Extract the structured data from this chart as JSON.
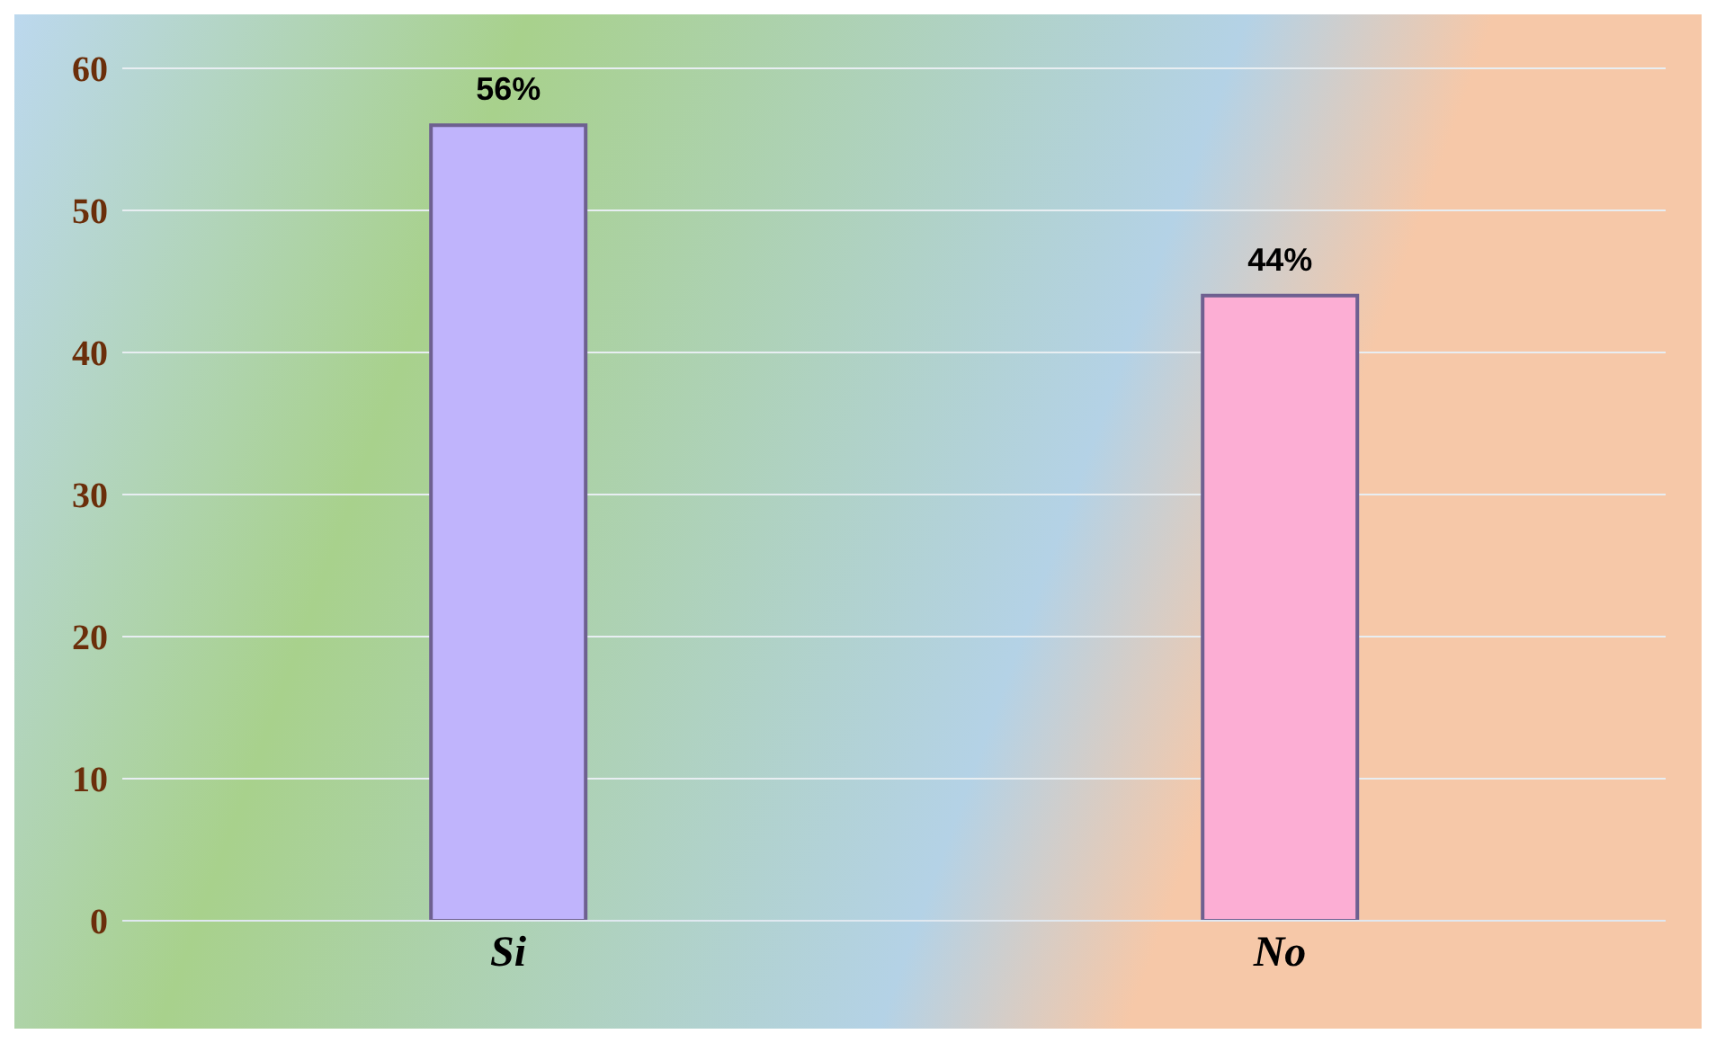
{
  "chart_data": {
    "type": "bar",
    "categories": [
      "Si",
      "No"
    ],
    "values": [
      56,
      44
    ],
    "colors": [
      "#c0b4fc",
      "#fcaed4"
    ],
    "value_labels": [
      "56%",
      "44%"
    ],
    "ylim": [
      0,
      60
    ],
    "yticks": [
      0,
      10,
      20,
      30,
      40,
      50,
      60
    ],
    "grid": "y"
  }
}
